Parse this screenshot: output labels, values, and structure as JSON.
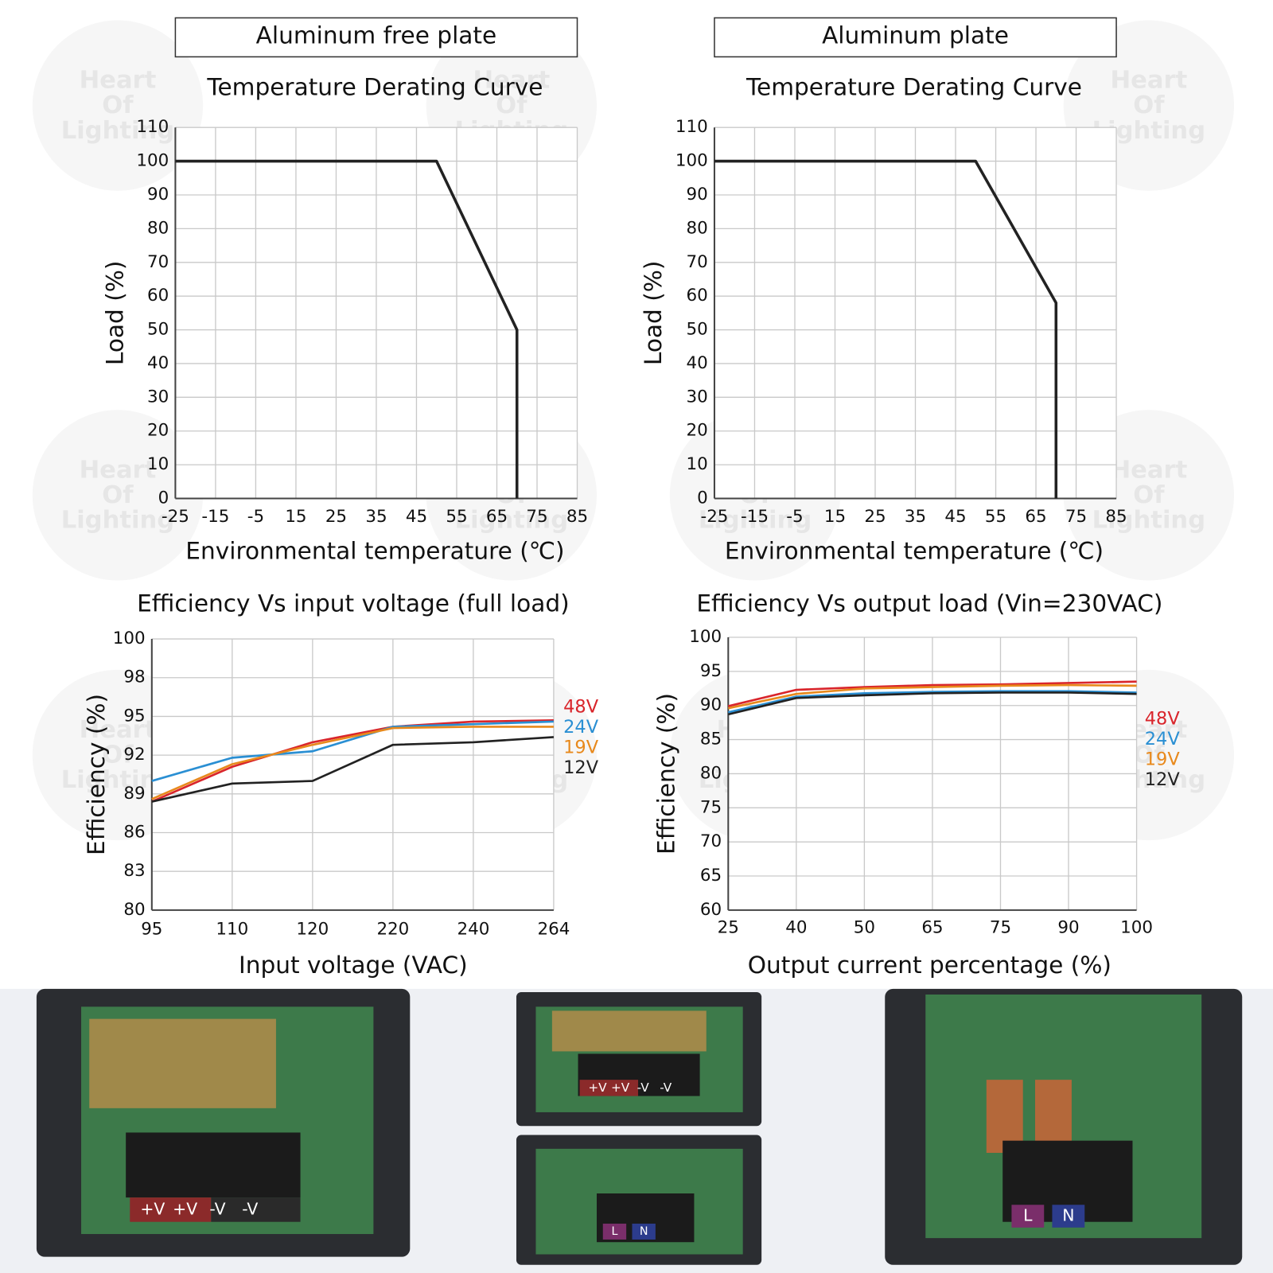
{
  "chart_data": [
    {
      "type": "line",
      "header": "Aluminum free plate",
      "title": "Temperature Derating Curve",
      "x_label": "Environmental temperature (℃)",
      "y_label": "Load (%)",
      "x": [
        -25,
        50,
        70,
        70
      ],
      "series": [
        {
          "color": "#222222",
          "values": [
            100,
            100,
            50,
            0
          ]
        }
      ],
      "xlim": [
        -25,
        85
      ],
      "xticks": [
        -25,
        -15,
        -5,
        15,
        25,
        35,
        45,
        55,
        65,
        75,
        85
      ],
      "ylim": [
        0,
        110
      ],
      "yticks": [
        0,
        10,
        20,
        30,
        40,
        50,
        60,
        70,
        80,
        90,
        100,
        110
      ],
      "grid": true
    },
    {
      "type": "line",
      "header": "Aluminum plate",
      "title": "Temperature Derating Curve",
      "x_label": "Environmental temperature (℃)",
      "y_label": "Load (%)",
      "x": [
        -25,
        50,
        70,
        70
      ],
      "series": [
        {
          "color": "#222222",
          "values": [
            100,
            100,
            58,
            0
          ]
        }
      ],
      "xlim": [
        -25,
        85
      ],
      "xticks": [
        -25,
        -15,
        -5,
        15,
        25,
        35,
        45,
        55,
        65,
        75,
        85
      ],
      "ylim": [
        0,
        110
      ],
      "yticks": [
        0,
        10,
        20,
        30,
        40,
        50,
        60,
        70,
        80,
        90,
        100,
        110
      ],
      "grid": true
    },
    {
      "type": "line",
      "title": "Efficiency Vs input voltage (full load)",
      "x_label": "Input voltage (VAC)",
      "y_label": "Efficiency (%)",
      "x": [
        95,
        110,
        120,
        220,
        240,
        264
      ],
      "series": [
        {
          "name": "48V",
          "color": "#d9252b",
          "values": [
            88.4,
            91.1,
            93.0,
            94.2,
            94.6,
            94.7
          ]
        },
        {
          "name": "24V",
          "color": "#2a8fd3",
          "values": [
            90.0,
            91.8,
            92.3,
            94.2,
            94.4,
            94.6
          ]
        },
        {
          "name": "19V",
          "color": "#e8891c",
          "values": [
            88.6,
            91.3,
            92.8,
            94.1,
            94.2,
            94.2
          ]
        },
        {
          "name": "12V",
          "color": "#222222",
          "values": [
            88.4,
            89.8,
            90.0,
            92.8,
            93.0,
            93.4
          ]
        }
      ],
      "xlim": [
        95,
        264
      ],
      "xticks": [
        95,
        110,
        120,
        220,
        240,
        264
      ],
      "ylim": [
        80,
        100
      ],
      "yticks": [
        80,
        83,
        86,
        89,
        92,
        95,
        98,
        100
      ],
      "grid": true,
      "legend": "right"
    },
    {
      "type": "line",
      "title": "Efficiency Vs output load (Vin=230VAC)",
      "x_label": "Output current percentage (%)",
      "y_label": "Efficiency (%)",
      "x": [
        25,
        40,
        50,
        65,
        75,
        90,
        100
      ],
      "series": [
        {
          "name": "48V",
          "color": "#d9252b",
          "values": [
            89.9,
            92.3,
            92.7,
            93.0,
            93.1,
            93.3,
            93.5
          ]
        },
        {
          "name": "24V",
          "color": "#2a8fd3",
          "values": [
            89.0,
            91.3,
            91.8,
            92.0,
            92.1,
            92.1,
            91.9
          ]
        },
        {
          "name": "19V",
          "color": "#e8891c",
          "values": [
            89.6,
            91.7,
            92.5,
            92.7,
            92.9,
            93.0,
            92.9
          ]
        },
        {
          "name": "12V",
          "color": "#222222",
          "values": [
            88.7,
            91.1,
            91.5,
            91.8,
            91.9,
            91.9,
            91.7
          ]
        }
      ],
      "xlim": [
        25,
        100
      ],
      "xticks": [
        25,
        40,
        50,
        65,
        75,
        90,
        100
      ],
      "ylim": [
        60,
        100
      ],
      "yticks": [
        60,
        65,
        70,
        75,
        80,
        85,
        90,
        95,
        100
      ],
      "grid": true,
      "legend": "right"
    }
  ],
  "watermark": [
    "Heart",
    "Of",
    "Lighting"
  ],
  "photos": [
    {
      "labels": [
        "+V",
        "+V",
        "-V",
        "-V"
      ]
    },
    {
      "labels": [
        "+V",
        "+V",
        "-V",
        "-V"
      ]
    },
    {
      "labels": [
        "L",
        "N"
      ]
    },
    {
      "labels": [
        "L",
        "N"
      ]
    }
  ]
}
